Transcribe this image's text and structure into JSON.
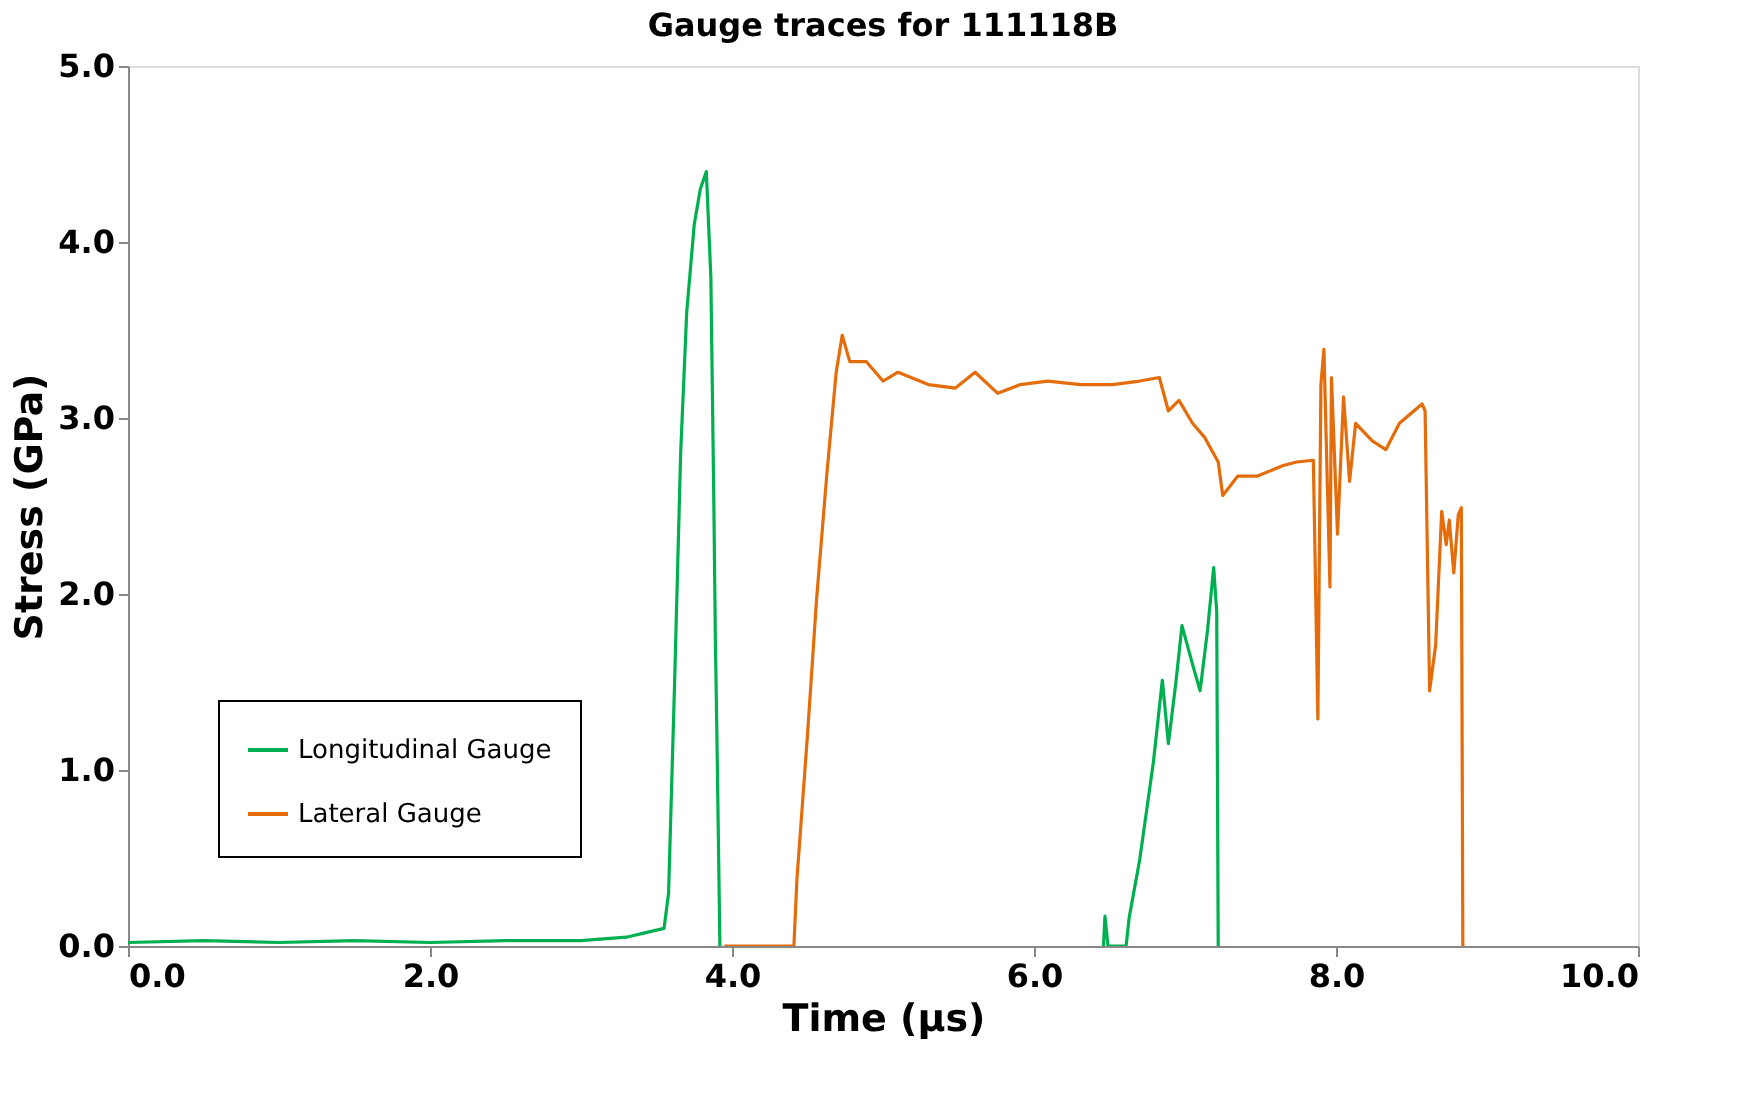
{
  "chart_data": {
    "type": "line",
    "title": "Gauge traces for 111118B",
    "xlabel": "Time (µs)",
    "ylabel": "Stress (GPa)",
    "xlim": [
      0,
      10
    ],
    "ylim": [
      0,
      5
    ],
    "xticks": [
      {
        "value": 0,
        "label": "0.0"
      },
      {
        "value": 2,
        "label": "2.0"
      },
      {
        "value": 4,
        "label": "4.0"
      },
      {
        "value": 6,
        "label": "6.0"
      },
      {
        "value": 8,
        "label": "8.0"
      },
      {
        "value": 10,
        "label": "10.0"
      }
    ],
    "yticks": [
      {
        "value": 0,
        "label": "0.0"
      },
      {
        "value": 1,
        "label": "1.0"
      },
      {
        "value": 2,
        "label": "2.0"
      },
      {
        "value": 3,
        "label": "3.0"
      },
      {
        "value": 4,
        "label": "4.0"
      },
      {
        "value": 5,
        "label": "5.0"
      }
    ],
    "grid": false,
    "legend": "bottom left",
    "marker": "none",
    "line_style": "solid",
    "series": [
      {
        "name": "Longitudinal Gauge",
        "color": "#00b050",
        "x": [
          0,
          0.5,
          1.0,
          1.5,
          2.0,
          2.5,
          3.0,
          3.3,
          3.45,
          3.55,
          3.58,
          3.62,
          3.66,
          3.7,
          3.75,
          3.79,
          3.83,
          3.86,
          3.88,
          3.89,
          3.9,
          3.92,
          4.0,
          6.46,
          6.47,
          6.49,
          6.61,
          6.63,
          6.7,
          6.79,
          6.85,
          6.89,
          6.94,
          6.98,
          7.05,
          7.1,
          7.15,
          7.19,
          7.21,
          7.22
        ],
        "values": [
          0.02,
          0.03,
          0.02,
          0.03,
          0.02,
          0.03,
          0.03,
          0.05,
          0.08,
          0.1,
          0.3,
          1.5,
          2.8,
          3.6,
          4.1,
          4.3,
          4.4,
          3.8,
          2.5,
          1.73,
          1.2,
          0,
          null,
          0,
          0.17,
          0,
          0,
          0.16,
          0.49,
          1.04,
          1.51,
          1.15,
          1.5,
          1.82,
          1.6,
          1.45,
          1.8,
          2.15,
          1.9,
          0
        ]
      },
      {
        "name": "Lateral Gauge",
        "color": "#e46c0a",
        "x": [
          3.95,
          4.2,
          4.41,
          4.43,
          4.5,
          4.56,
          4.63,
          4.69,
          4.73,
          4.78,
          4.89,
          5.0,
          5.1,
          5.3,
          5.48,
          5.61,
          5.76,
          5.91,
          6.09,
          6.31,
          6.52,
          6.7,
          6.83,
          6.89,
          6.96,
          7.05,
          7.13,
          7.22,
          7.25,
          7.35,
          7.48,
          7.65,
          7.74,
          7.85,
          7.88,
          7.9,
          7.92,
          7.96,
          7.97,
          8.01,
          8.05,
          8.09,
          8.13,
          8.24,
          8.33,
          8.42,
          8.57,
          8.59,
          8.62,
          8.66,
          8.7,
          8.73,
          8.75,
          8.78,
          8.81,
          8.83,
          8.84
        ],
        "values": [
          0,
          0,
          0,
          0.38,
          1.2,
          1.97,
          2.7,
          3.26,
          3.47,
          3.32,
          3.32,
          3.21,
          3.26,
          3.19,
          3.17,
          3.26,
          3.14,
          3.19,
          3.21,
          3.19,
          3.19,
          3.21,
          3.23,
          3.04,
          3.1,
          2.97,
          2.89,
          2.75,
          2.56,
          2.67,
          2.67,
          2.73,
          2.75,
          2.76,
          1.29,
          3.19,
          3.39,
          2.04,
          3.23,
          2.34,
          3.12,
          2.64,
          2.97,
          2.87,
          2.82,
          2.97,
          3.08,
          3.04,
          1.45,
          1.71,
          2.47,
          2.28,
          2.42,
          2.12,
          2.45,
          2.49,
          0
        ]
      }
    ]
  }
}
